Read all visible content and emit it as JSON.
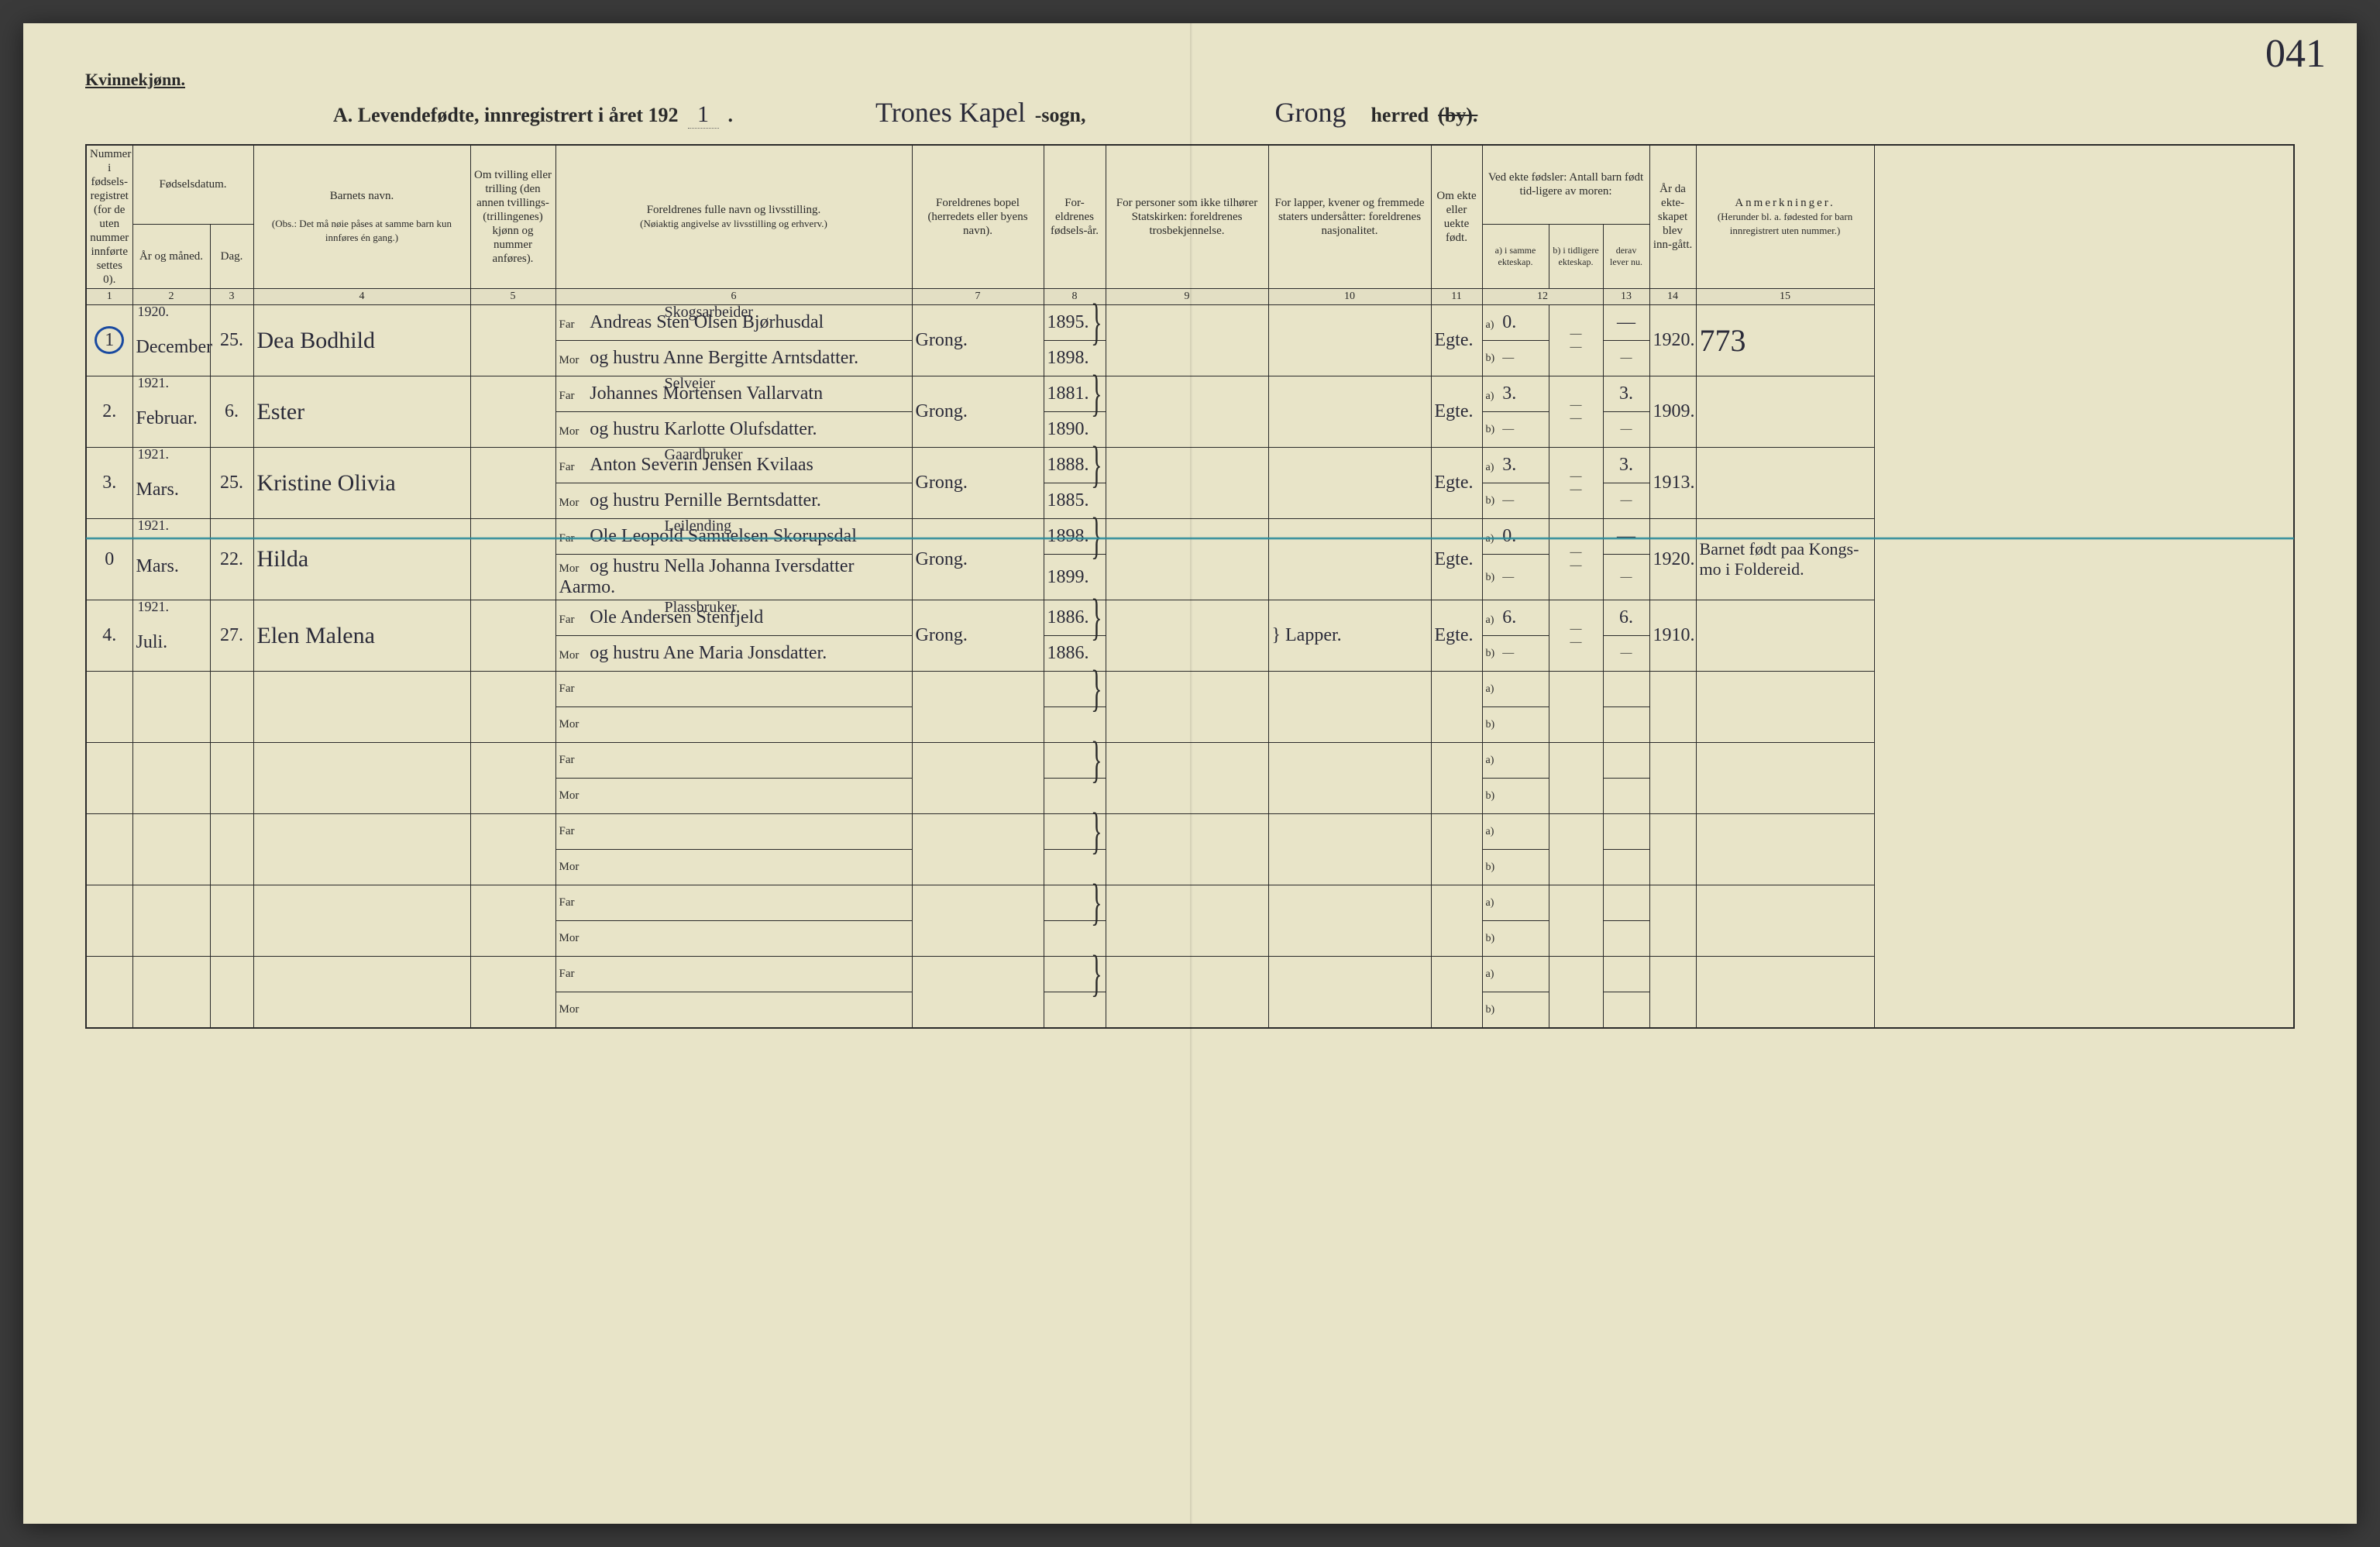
{
  "colors": {
    "page_bg": "#e8e4c8",
    "ink": "#2a2a2a",
    "handwriting": "#2a2a38",
    "circle_blue": "#1a4aa0",
    "strike_blue": "#2a8a9a",
    "outer_bg": "#3a3a3a"
  },
  "header": {
    "gender": "Kvinnekjønn.",
    "title_prefix": "A. Levendefødte, innregistrert i året 192",
    "year_suffix": "1",
    "sogn_hw": "Trones Kapel",
    "sogn_print": "-sogn,",
    "herred_hw": "Grong",
    "herred_print": "herred",
    "by_struck": "(by).",
    "page_number": "041"
  },
  "columns": {
    "c1": "Nummer i fødsels-registret (for de uten nummer innførte settes 0).",
    "c2_group": "Fødselsdatum.",
    "c2a": "År og måned.",
    "c2b": "Dag.",
    "c4": "Barnets navn.",
    "c4_note": "(Obs.: Det må nøie påses at samme barn kun innføres én gang.)",
    "c5": "Om tvilling eller trilling (den annen tvillings- (trillingenes) kjønn og nummer anføres).",
    "c6": "Foreldrenes fulle navn og livsstilling.",
    "c6_note": "(Nøiaktig angivelse av livsstilling og erhverv.)",
    "c7": "Foreldrenes bopel (herredets eller byens navn).",
    "c8": "For-eldrenes fødsels-år.",
    "c9": "For personer som ikke tilhører Statskirken: foreldrenes trosbekjennelse.",
    "c10": "For lapper, kvener og fremmede staters undersåtter: foreldrenes nasjonalitet.",
    "c11": "Om ekte eller uekte født.",
    "c12_group": "Ved ekte fødsler: Antall barn født tid-ligere av moren:",
    "c12a": "a) i samme ekteskap.",
    "c12b": "b) i tidligere ekteskap.",
    "c13": "derav lever nu.",
    "c14": "År da ekte-skapet blev inn-gått.",
    "c15": "Anmerkninger.",
    "c15_note": "(Herunder bl. a. fødested for barn innregistrert uten nummer.)"
  },
  "colnums": [
    "1",
    "2",
    "3",
    "4",
    "5",
    "6",
    "7",
    "8",
    "9",
    "10",
    "11",
    "12",
    "13",
    "14",
    "15"
  ],
  "rows": [
    {
      "num": "1",
      "circled": true,
      "year": "1920.",
      "month": "December",
      "day": "25.",
      "name": "Dea Bodhild",
      "far_title": "Skogsarbeider",
      "far": "Andreas Sten Olsen Bjørhusdal",
      "mor": "og hustru Anne Bergitte Arntsdatter.",
      "bopel": "Grong.",
      "far_year": "1895.",
      "mor_year": "1898.",
      "ekte": "Egte.",
      "a_same": "0.",
      "a_lever": "—",
      "ekteskap_year": "1920.",
      "anm": "773"
    },
    {
      "num": "2.",
      "year": "1921.",
      "month": "Februar.",
      "day": "6.",
      "name": "Ester",
      "far_title": "Selveier",
      "far": "Johannes Mortensen Vallarvatn",
      "mor": "og hustru Karlotte Olufsdatter.",
      "bopel": "Grong.",
      "far_year": "1881.",
      "mor_year": "1890.",
      "ekte": "Egte.",
      "a_same": "3.",
      "a_lever": "3.",
      "ekteskap_year": "1909.",
      "anm": ""
    },
    {
      "num": "3.",
      "year": "1921.",
      "month": "Mars.",
      "day": "25.",
      "name": "Kristine Olivia",
      "far_title": "Gaardbruker",
      "far": "Anton Severin Jensen Kvilaas",
      "mor": "og hustru Pernille Berntsdatter.",
      "bopel": "Grong.",
      "far_year": "1888.",
      "mor_year": "1885.",
      "ekte": "Egte.",
      "a_same": "3.",
      "a_lever": "3.",
      "ekteskap_year": "1913.",
      "anm": ""
    },
    {
      "num": "0",
      "struck": true,
      "year": "1921.",
      "month": "Mars.",
      "day": "22.",
      "name": "Hilda",
      "far_title": "Leilending",
      "far": "Ole Leopold Samuelsen Skorupsdal",
      "mor": "og hustru Nella Johanna Iversdatter Aarmo.",
      "bopel": "Grong.",
      "far_year": "1898.",
      "mor_year": "1899.",
      "ekte": "Egte.",
      "a_same": "0.",
      "a_lever": "—",
      "ekteskap_year": "1920.",
      "anm": "Barnet født paa Kongs-mo i Foldereid."
    },
    {
      "num": "4.",
      "year": "1921.",
      "month": "Juli.",
      "day": "27.",
      "name": "Elen Malena",
      "far_title": "Plassbruker",
      "far": "Ole Andersen Stenfjeld",
      "mor": "og hustru Ane Maria Jonsdatter.",
      "bopel": "Grong.",
      "far_year": "1886.",
      "mor_year": "1886.",
      "c10": "Lapper.",
      "ekte": "Egte.",
      "a_same": "6.",
      "a_lever": "6.",
      "ekteskap_year": "1910.",
      "anm": ""
    }
  ],
  "empty_rows": 5,
  "col_widths": {
    "c1": 60,
    "c2a": 100,
    "c2b": 56,
    "c4": 280,
    "c5": 110,
    "c6": 460,
    "c7": 170,
    "c8": 80,
    "c9": 210,
    "c10": 210,
    "c11": 66,
    "c12a": 86,
    "c12b": 70,
    "c13": 60,
    "c14": 60,
    "c15": 230
  },
  "typography": {
    "header_print_pt": 26,
    "th_pt": 15,
    "handwriting_pt": 30,
    "page_num_pt": 52
  }
}
